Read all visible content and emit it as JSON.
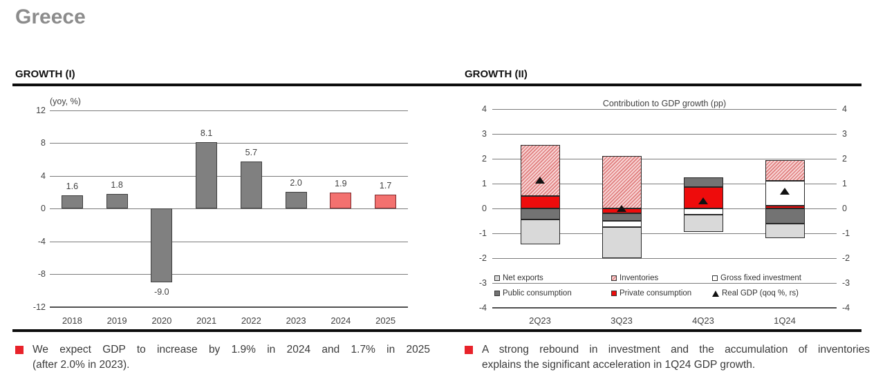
{
  "page": {
    "title": "Greece"
  },
  "sections": {
    "left": {
      "header": "GROWTH (I)"
    },
    "right": {
      "header": "GROWTH (II)"
    }
  },
  "chart_data": [
    {
      "type": "bar",
      "title": "",
      "axis_unit_label": "(yoy, %)",
      "categories": [
        "2018",
        "2019",
        "2020",
        "2021",
        "2022",
        "2023",
        "2024",
        "2025"
      ],
      "values": [
        1.6,
        1.8,
        -9.0,
        8.1,
        5.7,
        2.0,
        1.9,
        1.7
      ],
      "labels": [
        "1.6",
        "1.8",
        "-9.0",
        "8.1",
        "5.7",
        "2.0",
        "1.9",
        "1.7"
      ],
      "bar_colors": [
        "gray",
        "gray",
        "gray",
        "gray",
        "gray",
        "gray",
        "red",
        "red"
      ],
      "ylim": [
        -12,
        12
      ],
      "yticks": [
        12,
        8,
        4,
        0,
        -4,
        -8,
        -12
      ],
      "grid": "on",
      "legend": "none"
    },
    {
      "type": "stacked-bar",
      "title": "Contribution to GDP growth (pp)",
      "categories": [
        "2Q23",
        "3Q23",
        "4Q23",
        "1Q24"
      ],
      "series": [
        {
          "name": "Net exports",
          "style": "lightgray",
          "values": [
            -1.0,
            -1.25,
            -0.7,
            -0.6
          ]
        },
        {
          "name": "Inventories",
          "style": "hatched",
          "values": [
            2.05,
            2.1,
            0,
            0.85
          ]
        },
        {
          "name": "Gross fixed investment",
          "style": "white",
          "values": [
            0,
            -0.25,
            -0.25,
            1.0
          ]
        },
        {
          "name": "Public consumption",
          "style": "darkgray",
          "values": [
            -0.45,
            -0.3,
            0.4,
            -0.6
          ]
        },
        {
          "name": "Private consumption",
          "style": "red",
          "values": [
            0.5,
            -0.2,
            0.85,
            0.1
          ]
        },
        {
          "name": "Real GDP (qoq %, rs)",
          "style": "triangle",
          "values": [
            1.15,
            0.0,
            0.3,
            0.7
          ]
        }
      ],
      "stack_order": [
        "Private consumption",
        "Public consumption",
        "Gross fixed investment",
        "Net exports",
        "Inventories"
      ],
      "legend_rows": [
        [
          "Net exports",
          "Inventories",
          "Gross fixed investment"
        ],
        [
          "Public consumption",
          "Private consumption",
          "Real GDP (qoq %, rs)"
        ]
      ],
      "ylim": [
        -4,
        4
      ],
      "yticks": [
        4,
        3,
        2,
        1,
        0,
        -1,
        -2,
        -3,
        -4
      ],
      "grid": "on",
      "legend_position": "bottom-inside"
    }
  ],
  "notes": {
    "left": {
      "lines": [
        "We expect GDP to increase by 1.9% in 2024 and 1.7% in 2025",
        "(after 2.0% in 2023)."
      ]
    },
    "right": {
      "lines": [
        "A strong rebound in investment and the accumulation of inventories",
        "explains the significant acceleration in 1Q24 GDP growth."
      ]
    }
  },
  "colors": {
    "title_gray": "#8c8c8c",
    "accent_red": "#e8222a",
    "bar_gray": "#808080",
    "bar_gray_border": "#3d3d3d",
    "bar_salmon": "#f3716f",
    "bar_salmon_border": "#7d2b2e",
    "seg_lightgray": "#d9d9d9",
    "seg_darkgray": "#737373",
    "seg_red": "#ee0c0c",
    "seg_white": "#ffffff",
    "hatch_bg": "#f7d4d4",
    "hatch_stripe": "#e07e7e",
    "seg_border": "#262626",
    "grid": "#7a7a7a",
    "axis": "#4f4f4f",
    "text": "#404040",
    "marker_black": "#111111"
  }
}
